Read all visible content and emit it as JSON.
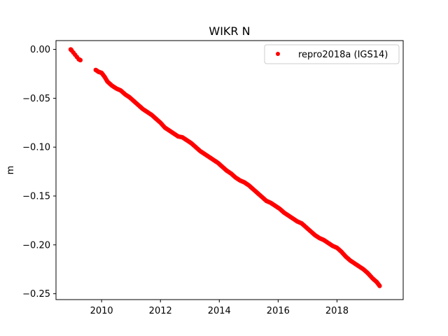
{
  "chart_data": {
    "type": "scatter",
    "title": "WIKR N",
    "xlabel": "",
    "ylabel": "m",
    "xlim": [
      2008.45,
      2020.25
    ],
    "ylim": [
      -0.256,
      0.009
    ],
    "x_ticks": [
      2010,
      2012,
      2014,
      2016,
      2018
    ],
    "x_tick_labels": [
      "2010",
      "2012",
      "2014",
      "2016",
      "2018"
    ],
    "y_ticks": [
      0.0,
      -0.05,
      -0.1,
      -0.15,
      -0.2,
      -0.25
    ],
    "y_tick_labels": [
      "0.00",
      "−0.05",
      "−0.10",
      "−0.15",
      "−0.20",
      "−0.25"
    ],
    "grid": false,
    "legend_position": "upper right",
    "series": [
      {
        "name": "repro2018a (IGS14)",
        "color": "#ff0000",
        "marker": "circle",
        "x": [
          2008.95,
          2008.98,
          2009.22,
          2009.28,
          2009.8,
          2009.9,
          2010.0,
          2010.1,
          2010.2,
          2010.35,
          2010.5,
          2010.65,
          2010.8,
          2010.95,
          2011.1,
          2011.25,
          2011.4,
          2011.55,
          2011.7,
          2011.85,
          2012.0,
          2012.15,
          2012.3,
          2012.45,
          2012.6,
          2012.75,
          2012.9,
          2013.05,
          2013.2,
          2013.35,
          2013.5,
          2013.65,
          2013.8,
          2013.95,
          2014.1,
          2014.25,
          2014.4,
          2014.55,
          2014.7,
          2014.85,
          2015.0,
          2015.15,
          2015.3,
          2015.45,
          2015.6,
          2015.75,
          2015.9,
          2016.05,
          2016.2,
          2016.35,
          2016.5,
          2016.65,
          2016.8,
          2016.95,
          2017.1,
          2017.25,
          2017.4,
          2017.55,
          2017.7,
          2017.85,
          2018.0,
          2018.15,
          2018.3,
          2018.45,
          2018.6,
          2018.75,
          2018.9,
          2019.05,
          2019.2,
          2019.35,
          2019.45
        ],
        "y": [
          0.0,
          -0.001,
          -0.01,
          -0.011,
          -0.021,
          -0.023,
          -0.024,
          -0.028,
          -0.033,
          -0.037,
          -0.04,
          -0.042,
          -0.046,
          -0.049,
          -0.053,
          -0.057,
          -0.061,
          -0.064,
          -0.067,
          -0.071,
          -0.075,
          -0.08,
          -0.083,
          -0.086,
          -0.089,
          -0.09,
          -0.093,
          -0.096,
          -0.1,
          -0.104,
          -0.107,
          -0.11,
          -0.113,
          -0.116,
          -0.12,
          -0.124,
          -0.127,
          -0.131,
          -0.134,
          -0.136,
          -0.139,
          -0.143,
          -0.147,
          -0.151,
          -0.155,
          -0.157,
          -0.16,
          -0.163,
          -0.167,
          -0.17,
          -0.173,
          -0.176,
          -0.178,
          -0.182,
          -0.186,
          -0.19,
          -0.193,
          -0.195,
          -0.198,
          -0.201,
          -0.203,
          -0.207,
          -0.212,
          -0.216,
          -0.219,
          -0.222,
          -0.225,
          -0.229,
          -0.234,
          -0.238,
          -0.242
        ]
      }
    ]
  }
}
